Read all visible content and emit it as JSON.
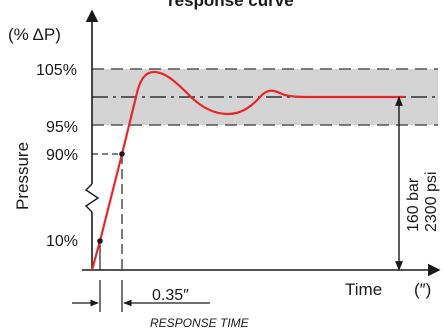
{
  "title": "response curve",
  "y_unit_label": "(% ΔP)",
  "y_axis_label": "Pressure",
  "x_axis_label": "Time",
  "x_unit_label": "(″)",
  "pct_labels": {
    "p105": "105%",
    "p95": "95%",
    "p90": "90%",
    "p10": "10%"
  },
  "response_value_label": "0.35″",
  "response_time_caption": "RESPONSE TIME",
  "pressure_range_bar": "160 bar",
  "pressure_range_psi": "2300 psi",
  "colors": {
    "band": "#d4d4d4",
    "curve": "#e8272a",
    "axis": "#1a1a1a"
  }
}
